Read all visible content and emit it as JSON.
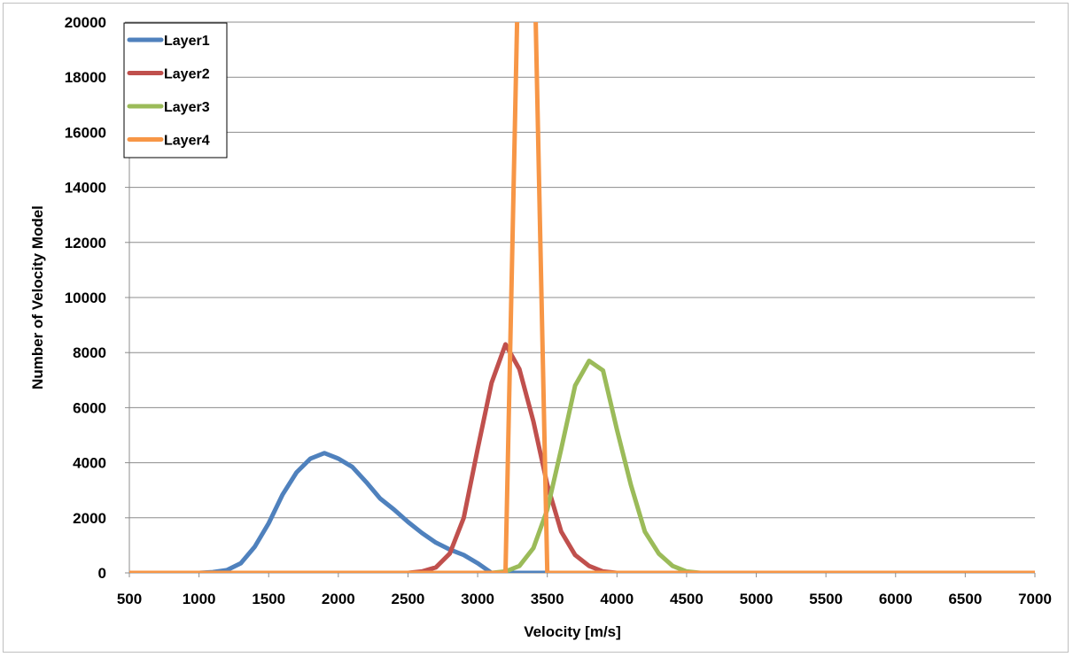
{
  "chart_data": {
    "type": "line",
    "title": "",
    "xlabel": "Velocity [m/s]",
    "ylabel": "Number of Velocity Model",
    "xlim": [
      500,
      7000
    ],
    "ylim": [
      0,
      20000
    ],
    "x_ticks": [
      500,
      1000,
      1500,
      2000,
      2500,
      3000,
      3500,
      4000,
      4500,
      5000,
      5500,
      6000,
      6500,
      7000
    ],
    "y_ticks": [
      0,
      2000,
      4000,
      6000,
      8000,
      10000,
      12000,
      14000,
      16000,
      18000,
      20000
    ],
    "grid": "horizontal",
    "legend_position": "top-left",
    "series": [
      {
        "name": "Layer1",
        "color": "#4f81bd",
        "points": [
          [
            500,
            0
          ],
          [
            1000,
            0
          ],
          [
            1100,
            30
          ],
          [
            1200,
            100
          ],
          [
            1300,
            350
          ],
          [
            1400,
            950
          ],
          [
            1500,
            1800
          ],
          [
            1600,
            2850
          ],
          [
            1700,
            3650
          ],
          [
            1800,
            4150
          ],
          [
            1900,
            4350
          ],
          [
            2000,
            4150
          ],
          [
            2100,
            3850
          ],
          [
            2200,
            3300
          ],
          [
            2300,
            2700
          ],
          [
            2400,
            2300
          ],
          [
            2500,
            1850
          ],
          [
            2600,
            1450
          ],
          [
            2700,
            1100
          ],
          [
            2800,
            850
          ],
          [
            2900,
            650
          ],
          [
            3000,
            350
          ],
          [
            3100,
            0
          ],
          [
            3500,
            0
          ],
          [
            7000,
            0
          ]
        ]
      },
      {
        "name": "Layer2",
        "color": "#c0504d",
        "points": [
          [
            500,
            0
          ],
          [
            2500,
            0
          ],
          [
            2600,
            50
          ],
          [
            2700,
            200
          ],
          [
            2800,
            700
          ],
          [
            2900,
            2000
          ],
          [
            3000,
            4500
          ],
          [
            3100,
            6900
          ],
          [
            3200,
            8300
          ],
          [
            3300,
            7400
          ],
          [
            3400,
            5500
          ],
          [
            3500,
            3200
          ],
          [
            3600,
            1500
          ],
          [
            3700,
            650
          ],
          [
            3800,
            250
          ],
          [
            3900,
            50
          ],
          [
            4000,
            0
          ],
          [
            7000,
            0
          ]
        ]
      },
      {
        "name": "Layer3",
        "color": "#9bbb59",
        "points": [
          [
            500,
            0
          ],
          [
            3100,
            0
          ],
          [
            3200,
            50
          ],
          [
            3300,
            250
          ],
          [
            3400,
            900
          ],
          [
            3500,
            2300
          ],
          [
            3600,
            4500
          ],
          [
            3700,
            6800
          ],
          [
            3800,
            7700
          ],
          [
            3900,
            7350
          ],
          [
            4000,
            5200
          ],
          [
            4100,
            3200
          ],
          [
            4200,
            1500
          ],
          [
            4300,
            700
          ],
          [
            4400,
            250
          ],
          [
            4500,
            50
          ],
          [
            4600,
            0
          ],
          [
            7000,
            0
          ]
        ]
      },
      {
        "name": "Layer4",
        "color": "#f79646",
        "points": [
          [
            500,
            0
          ],
          [
            3200,
            0
          ],
          [
            3300,
            24000
          ],
          [
            3400,
            24000
          ],
          [
            3500,
            0
          ],
          [
            7000,
            0
          ]
        ]
      }
    ]
  }
}
